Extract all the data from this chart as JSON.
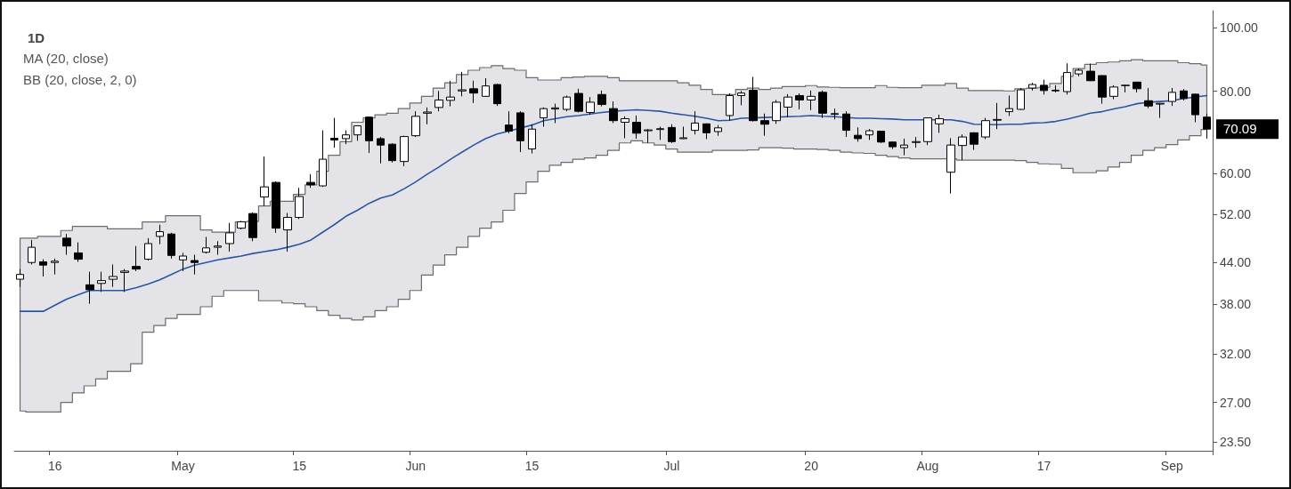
{
  "chart_data": {
    "type": "candlestick",
    "title": "1D",
    "annotations": [
      "MA (20, close)",
      "BB (20, close, 2, 0)"
    ],
    "categories": [
      null,
      null,
      null,
      "16",
      null,
      null,
      null,
      null,
      null,
      null,
      null,
      null,
      null,
      null,
      "May",
      null,
      null,
      null,
      null,
      null,
      null,
      null,
      null,
      null,
      "15",
      null,
      null,
      null,
      null,
      null,
      null,
      null,
      null,
      null,
      "Jun",
      null,
      null,
      null,
      null,
      null,
      null,
      null,
      null,
      null,
      "15",
      null,
      null,
      null,
      null,
      null,
      null,
      null,
      null,
      null,
      null,
      null,
      "Jul",
      null,
      null,
      null,
      null,
      null,
      null,
      null,
      null,
      null,
      null,
      null,
      "20",
      null,
      null,
      null,
      null,
      null,
      null,
      null,
      null,
      null,
      "Aug",
      null,
      null,
      null,
      null,
      null,
      null,
      null,
      null,
      null,
      "17",
      null,
      null,
      null,
      null,
      null,
      null,
      null,
      null,
      null,
      null,
      "Sep",
      null,
      null,
      null
    ],
    "ylim": [
      22.8,
      106
    ],
    "yticks": [
      {
        "value": 23.5,
        "label": "23.50"
      },
      {
        "value": 27,
        "label": "27.00"
      },
      {
        "value": 32,
        "label": "32.00"
      },
      {
        "value": 38,
        "label": "38.00"
      },
      {
        "value": 44,
        "label": "44.00"
      },
      {
        "value": 52,
        "label": "52.00"
      },
      {
        "value": 60,
        "label": "60.00"
      },
      {
        "value": 80,
        "label": "80.00"
      },
      {
        "value": 100,
        "label": "100.00"
      }
    ],
    "log": "y",
    "grid": false,
    "series": [
      {
        "color": "#000000",
        "value_labels": [
          null,
          null,
          null,
          null,
          null,
          null,
          null,
          null,
          null,
          null,
          null,
          null,
          null,
          null,
          null,
          null,
          null,
          null,
          null,
          null,
          null,
          null,
          null,
          null,
          null,
          null,
          null,
          null,
          null,
          null,
          null,
          null,
          null,
          null,
          null,
          null,
          null,
          null,
          null,
          null,
          null,
          null,
          null,
          null,
          null,
          null,
          null,
          null,
          null,
          null,
          null,
          null,
          null,
          null,
          null,
          null,
          null,
          null,
          null,
          null,
          null,
          null,
          null,
          null,
          null,
          null,
          null,
          null,
          null,
          null,
          null,
          null,
          null,
          null,
          null,
          null,
          null,
          null,
          null,
          null,
          null,
          null,
          null,
          null,
          null,
          null,
          null,
          null,
          null,
          null,
          null,
          null,
          null,
          null,
          null,
          null,
          null,
          null,
          null,
          null,
          null,
          null,
          "70.09"
        ],
        "ohlc": [
          [
            41.5,
            43.0,
            40.4,
            42.2
          ],
          [
            44.0,
            47.6,
            43.7,
            46.4
          ],
          [
            44.1,
            44.5,
            41.9,
            43.6
          ],
          [
            44.0,
            44.6,
            42.2,
            44.2
          ],
          [
            47.9,
            48.6,
            45.2,
            46.6
          ],
          [
            45.5,
            47.2,
            44.1,
            44.5
          ],
          [
            40.7,
            42.6,
            38.1,
            40.0
          ],
          [
            40.9,
            42.6,
            39.7,
            41.3
          ],
          [
            41.5,
            43.7,
            40.4,
            41.9
          ],
          [
            42.5,
            43.0,
            39.7,
            42.7
          ],
          [
            43.4,
            46.6,
            42.7,
            43.0
          ],
          [
            44.5,
            47.9,
            44.3,
            47.0
          ],
          [
            48.2,
            50.2,
            46.9,
            49.0
          ],
          [
            48.6,
            48.8,
            44.6,
            45.1
          ],
          [
            44.4,
            45.5,
            42.7,
            45.0
          ],
          [
            44.3,
            45.2,
            42.2,
            44.0
          ],
          [
            45.6,
            48.1,
            45.4,
            46.3
          ],
          [
            46.4,
            47.4,
            45.2,
            46.6
          ],
          [
            47.0,
            50.5,
            45.7,
            48.8
          ],
          [
            49.6,
            50.9,
            49.4,
            50.7
          ],
          [
            52.2,
            52.4,
            47.4,
            48.0
          ],
          [
            55.3,
            63.7,
            53.6,
            57.3
          ],
          [
            58.2,
            58.4,
            48.8,
            49.6
          ],
          [
            49.3,
            52.3,
            45.7,
            51.5
          ],
          [
            51.5,
            57.1,
            51.2,
            55.4
          ],
          [
            58.2,
            59.9,
            57.1,
            57.7
          ],
          [
            57.5,
            69.8,
            57.3,
            63.1
          ],
          [
            67.9,
            72.9,
            65.7,
            67.5
          ],
          [
            67.8,
            69.8,
            66.5,
            68.7
          ],
          [
            68.7,
            71.0,
            67.3,
            70.9
          ],
          [
            73.1,
            73.2,
            64.5,
            67.3
          ],
          [
            67.8,
            68.2,
            62.2,
            66.3
          ],
          [
            66.5,
            66.7,
            62.4,
            62.8
          ],
          [
            62.6,
            68.5,
            61.6,
            68.3
          ],
          [
            68.5,
            74.6,
            68.2,
            73.3
          ],
          [
            74.1,
            75.6,
            71.3,
            74.4
          ],
          [
            75.6,
            80.1,
            74.6,
            77.6
          ],
          [
            77.5,
            83.0,
            75.9,
            78.4
          ],
          [
            80.1,
            85.6,
            78.6,
            80.4
          ],
          [
            80.7,
            83.0,
            76.8,
            79.5
          ],
          [
            78.6,
            83.7,
            78.5,
            81.5
          ],
          [
            81.9,
            82.1,
            76.0,
            76.6
          ],
          [
            71.1,
            74.6,
            69.1,
            69.6
          ],
          [
            74.2,
            74.6,
            64.7,
            67.3
          ],
          [
            65.4,
            71.3,
            64.4,
            70.1
          ],
          [
            72.9,
            75.6,
            70.7,
            75.3
          ],
          [
            75.2,
            76.6,
            71.6,
            75.5
          ],
          [
            75.1,
            78.8,
            74.6,
            78.4
          ],
          [
            79.4,
            80.7,
            74.3,
            74.6
          ],
          [
            74.3,
            78.4,
            73.7,
            77.0
          ],
          [
            79.1,
            80.2,
            75.9,
            76.4
          ],
          [
            75.3,
            77.2,
            71.6,
            72.2
          ],
          [
            71.8,
            73.3,
            67.9,
            72.7
          ],
          [
            71.8,
            73.5,
            67.8,
            69.1
          ],
          [
            69.7,
            70.1,
            66.8,
            69.9
          ],
          [
            70.0,
            70.7,
            67.5,
            70.2
          ],
          [
            70.5,
            71.3,
            66.8,
            67.1
          ],
          [
            67.8,
            70.7,
            67.7,
            68.0
          ],
          [
            69.8,
            74.6,
            68.8,
            71.6
          ],
          [
            71.4,
            71.5,
            67.7,
            69.2
          ],
          [
            69.5,
            71.1,
            68.5,
            70.4
          ],
          [
            73.5,
            79.4,
            72.2,
            78.8
          ],
          [
            78.8,
            80.1,
            76.2,
            79.5
          ],
          [
            80.3,
            84.1,
            72.0,
            72.2
          ],
          [
            72.2,
            74.0,
            68.5,
            71.3
          ],
          [
            72.2,
            77.6,
            71.4,
            77.0
          ],
          [
            75.7,
            79.2,
            73.1,
            78.4
          ],
          [
            78.8,
            79.4,
            75.1,
            77.6
          ],
          [
            77.6,
            80.2,
            74.9,
            78.6
          ],
          [
            79.7,
            80.2,
            72.9,
            74.1
          ],
          [
            73.8,
            75.3,
            72.5,
            74.0
          ],
          [
            73.9,
            74.6,
            68.2,
            69.8
          ],
          [
            68.6,
            70.5,
            67.1,
            67.8
          ],
          [
            68.7,
            70.1,
            67.5,
            69.7
          ],
          [
            69.6,
            69.7,
            66.8,
            67.0
          ],
          [
            67.0,
            67.1,
            65.4,
            65.9
          ],
          [
            65.7,
            67.8,
            64.0,
            66.3
          ],
          [
            66.9,
            68.2,
            65.7,
            67.1
          ],
          [
            67.1,
            73.0,
            66.3,
            72.9
          ],
          [
            71.4,
            73.7,
            69.2,
            72.7
          ],
          [
            60.3,
            67.9,
            56.0,
            66.3
          ],
          [
            66.2,
            68.8,
            62.9,
            68.2
          ],
          [
            69.2,
            69.3,
            65.2,
            66.5
          ],
          [
            68.2,
            72.9,
            67.7,
            72.2
          ],
          [
            72.3,
            76.8,
            70.1,
            72.5
          ],
          [
            74.5,
            78.8,
            73.4,
            75.3
          ],
          [
            75.1,
            80.9,
            75.0,
            80.4
          ],
          [
            80.9,
            82.4,
            80.2,
            81.9
          ],
          [
            81.7,
            83.3,
            79.1,
            80.2
          ],
          [
            80.1,
            81.7,
            79.7,
            80.3
          ],
          [
            79.9,
            88.2,
            79.1,
            85.4
          ],
          [
            85.0,
            86.6,
            84.3,
            86.1
          ],
          [
            85.8,
            88.1,
            82.9,
            83.0
          ],
          [
            84.5,
            84.6,
            76.6,
            78.4
          ],
          [
            78.6,
            81.7,
            77.8,
            81.2
          ],
          [
            81.6,
            81.8,
            79.7,
            81.7
          ],
          [
            82.6,
            82.7,
            79.7,
            80.7
          ],
          [
            77.4,
            80.9,
            75.4,
            76.0
          ],
          [
            76.5,
            76.8,
            72.9,
            76.7
          ],
          [
            77.2,
            80.9,
            76.0,
            79.7
          ],
          [
            80.1,
            80.6,
            77.5,
            78.0
          ],
          [
            79.2,
            79.3,
            71.8,
            73.7
          ],
          [
            73.1,
            74.0,
            67.8,
            70.09
          ]
        ]
      },
      {
        "type": "line",
        "color": "#2a56a0",
        "values": [
          37.1,
          37.1,
          37.1,
          37.9,
          38.7,
          39.3,
          39.9,
          39.9,
          39.9,
          39.9,
          40.3,
          40.8,
          41.4,
          42.2,
          43.0,
          43.6,
          44.0,
          44.4,
          44.7,
          45.0,
          45.4,
          45.7,
          46.0,
          46.4,
          46.9,
          47.6,
          48.9,
          50.2,
          51.7,
          52.8,
          54.1,
          55.1,
          55.7,
          56.9,
          58.3,
          59.9,
          61.4,
          63.1,
          64.7,
          66.3,
          67.8,
          68.9,
          69.6,
          null,
          71.1,
          72.2,
          72.7,
          73.2,
          73.5,
          73.9,
          74.3,
          74.6,
          74.8,
          75.0,
          74.8,
          74.6,
          74.1,
          73.7,
          73.3,
          72.8,
          72.2,
          72.3,
          72.8,
          null,
          73.0,
          null,
          73.2,
          73.3,
          73.5,
          73.3,
          73.2,
          null,
          72.8,
          72.8,
          72.7,
          72.6,
          72.4,
          72.4,
          null,
          null,
          72.4,
          72.0,
          71.3,
          null,
          71.2,
          71.3,
          71.3,
          71.6,
          71.7,
          72.0,
          72.6,
          73.3,
          74.1,
          74.5,
          75.2,
          75.8,
          76.6,
          77.0,
          77.2,
          77.4,
          78.0,
          null,
          78.8
        ],
        "upper": [
          47.9,
          47.9,
          48.2,
          48.2,
          49.2,
          49.9,
          49.9,
          49.9,
          49.5,
          49.5,
          49.5,
          50.7,
          50.7,
          51.8,
          51.8,
          51.8,
          49.3,
          48.9,
          48.9,
          50.7,
          50.8,
          53.6,
          54.5,
          54.5,
          55.8,
          57.7,
          60.5,
          64.0,
          67.1,
          71.8,
          72.9,
          73.7,
          74.1,
          75.3,
          76.8,
          78.6,
          80.9,
          82.4,
          84.8,
          86.1,
          86.9,
          87.5,
          86.6,
          86.1,
          83.9,
          83.2,
          83.2,
          83.9,
          84.1,
          84.3,
          84.3,
          83.9,
          83.0,
          83.0,
          83.0,
          83.0,
          83.0,
          82.4,
          81.7,
          80.5,
          79.1,
          79.1,
          80.5,
          80.9,
          80.5,
          80.9,
          81.3,
          81.3,
          81.6,
          81.2,
          81.1,
          81.0,
          81.0,
          81.0,
          81.6,
          81.1,
          81.0,
          81.0,
          81.7,
          81.7,
          82.2,
          80.9,
          80.2,
          80.2,
          80.2,
          80.1,
          80.7,
          80.9,
          81.1,
          82.2,
          84.3,
          86.6,
          87.9,
          88.4,
          88.6,
          89.0,
          89.3,
          89.0,
          89.0,
          89.0,
          88.4,
          88.1,
          87.7
        ],
        "lower": [
          26.2,
          26.1,
          26.1,
          26.1,
          27.0,
          27.9,
          28.6,
          29.3,
          30.1,
          30.1,
          30.9,
          34.5,
          35.3,
          36.2,
          36.7,
          36.7,
          37.7,
          39.1,
          39.9,
          39.9,
          39.9,
          38.5,
          38.5,
          38.2,
          38.1,
          37.7,
          37.2,
          36.6,
          36.2,
          36.0,
          36.4,
          37.2,
          37.7,
          38.7,
          39.9,
          42.1,
          43.6,
          45.2,
          46.4,
          48.2,
          49.6,
          50.7,
          52.8,
          56.0,
          58.3,
          60.5,
          61.8,
          62.4,
          63.1,
          63.4,
          64.0,
          65.1,
          66.8,
          67.3,
          66.8,
          66.3,
          65.4,
          64.7,
          64.7,
          64.7,
          65.1,
          65.1,
          65.1,
          65.2,
          65.7,
          65.7,
          65.6,
          65.4,
          65.4,
          65.3,
          65.1,
          64.7,
          64.5,
          64.4,
          64.0,
          63.7,
          63.4,
          63.2,
          63.2,
          63.2,
          63.2,
          62.9,
          62.9,
          62.9,
          62.9,
          62.9,
          62.8,
          62.4,
          62.1,
          62.0,
          61.1,
          60.2,
          60.2,
          60.6,
          61.4,
          62.4,
          64.0,
          65.1,
          65.7,
          66.4,
          67.5,
          68.5,
          70.0
        ]
      }
    ]
  }
}
